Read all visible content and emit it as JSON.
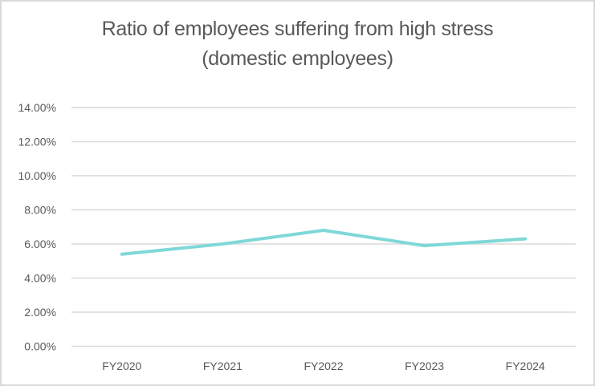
{
  "chart": {
    "title_line1": "Ratio of employees suffering from high stress",
    "title_line2": "(domestic employees)",
    "line_color": "#7fd8d8",
    "grid_color": "#d9d9d9",
    "text_color": "#595959"
  },
  "chart_data": {
    "type": "line",
    "title": "Ratio of employees suffering from high stress (domestic employees)",
    "xlabel": "",
    "ylabel": "",
    "categories": [
      "FY2020",
      "FY2021",
      "FY2022",
      "FY2023",
      "FY2024"
    ],
    "series": [
      {
        "name": "Ratio of employees suffering from high stress",
        "values": [
          5.4,
          6.0,
          6.8,
          5.9,
          6.3
        ]
      }
    ],
    "y_ticks": [
      "0.00%",
      "2.00%",
      "4.00%",
      "6.00%",
      "8.00%",
      "10.00%",
      "12.00%",
      "14.00%"
    ],
    "ylim": [
      0,
      14
    ],
    "y_unit": "%",
    "grid": true,
    "legend": "none"
  }
}
